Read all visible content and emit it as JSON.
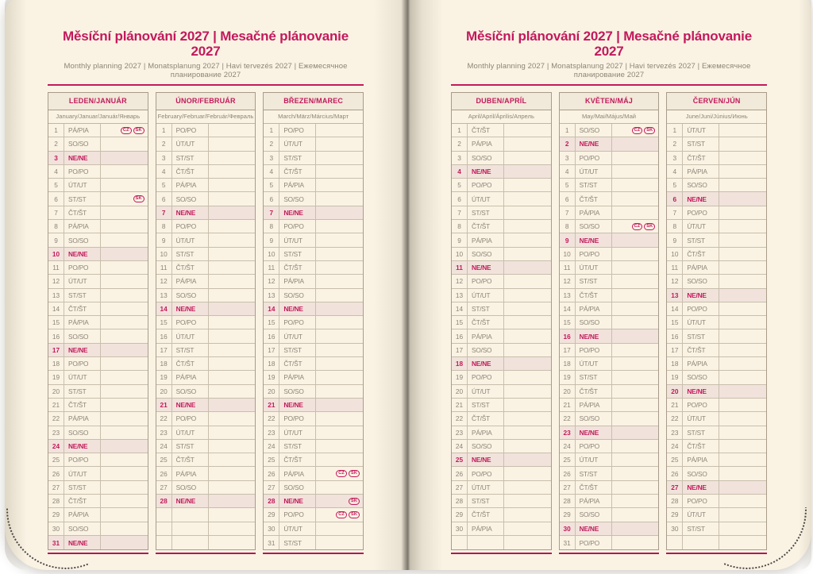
{
  "header": {
    "title": "Měsíční plánování 2027 | Mesačné plánovanie 2027",
    "subtitle": "Monthly planning 2027 | Monatsplanung 2027 | Havi tervezés 2027 | Ежемесячное планирование 2027"
  },
  "colors": {
    "accent": "#c3195c",
    "paper": "#faf3e4",
    "sunday_row": "#f1e3db",
    "table_border": "#a89c8a"
  },
  "months": [
    {
      "name": "LEDEN/JANUÁR",
      "languages": "January/Januar/Január/Январь",
      "empty_rows": 0,
      "days": [
        {
          "n": 1,
          "d": "PÁ/PIA",
          "b": [
            "CZ",
            "SK"
          ]
        },
        {
          "n": 2,
          "d": "SO/SO"
        },
        {
          "n": 3,
          "d": "NE/NE",
          "s": true
        },
        {
          "n": 4,
          "d": "PO/PO"
        },
        {
          "n": 5,
          "d": "ÚT/UT"
        },
        {
          "n": 6,
          "d": "ST/ST",
          "b": [
            "SK"
          ]
        },
        {
          "n": 7,
          "d": "ČT/ŠT"
        },
        {
          "n": 8,
          "d": "PÁ/PIA"
        },
        {
          "n": 9,
          "d": "SO/SO"
        },
        {
          "n": 10,
          "d": "NE/NE",
          "s": true
        },
        {
          "n": 11,
          "d": "PO/PO"
        },
        {
          "n": 12,
          "d": "ÚT/UT"
        },
        {
          "n": 13,
          "d": "ST/ST"
        },
        {
          "n": 14,
          "d": "ČT/ŠT"
        },
        {
          "n": 15,
          "d": "PÁ/PIA"
        },
        {
          "n": 16,
          "d": "SO/SO"
        },
        {
          "n": 17,
          "d": "NE/NE",
          "s": true
        },
        {
          "n": 18,
          "d": "PO/PO"
        },
        {
          "n": 19,
          "d": "ÚT/UT"
        },
        {
          "n": 20,
          "d": "ST/ST"
        },
        {
          "n": 21,
          "d": "ČT/ŠT"
        },
        {
          "n": 22,
          "d": "PÁ/PIA"
        },
        {
          "n": 23,
          "d": "SO/SO"
        },
        {
          "n": 24,
          "d": "NE/NE",
          "s": true
        },
        {
          "n": 25,
          "d": "PO/PO"
        },
        {
          "n": 26,
          "d": "ÚT/UT"
        },
        {
          "n": 27,
          "d": "ST/ST"
        },
        {
          "n": 28,
          "d": "ČT/ŠT"
        },
        {
          "n": 29,
          "d": "PÁ/PIA"
        },
        {
          "n": 30,
          "d": "SO/SO"
        },
        {
          "n": 31,
          "d": "NE/NE",
          "s": true
        }
      ]
    },
    {
      "name": "ÚNOR/FEBRUÁR",
      "languages": "February/Februar/Február/Февраль",
      "empty_rows": 3,
      "days": [
        {
          "n": 1,
          "d": "PO/PO"
        },
        {
          "n": 2,
          "d": "ÚT/UT"
        },
        {
          "n": 3,
          "d": "ST/ST"
        },
        {
          "n": 4,
          "d": "ČT/ŠT"
        },
        {
          "n": 5,
          "d": "PÁ/PIA"
        },
        {
          "n": 6,
          "d": "SO/SO"
        },
        {
          "n": 7,
          "d": "NE/NE",
          "s": true
        },
        {
          "n": 8,
          "d": "PO/PO"
        },
        {
          "n": 9,
          "d": "ÚT/UT"
        },
        {
          "n": 10,
          "d": "ST/ST"
        },
        {
          "n": 11,
          "d": "ČT/ŠT"
        },
        {
          "n": 12,
          "d": "PÁ/PIA"
        },
        {
          "n": 13,
          "d": "SO/SO"
        },
        {
          "n": 14,
          "d": "NE/NE",
          "s": true
        },
        {
          "n": 15,
          "d": "PO/PO"
        },
        {
          "n": 16,
          "d": "ÚT/UT"
        },
        {
          "n": 17,
          "d": "ST/ST"
        },
        {
          "n": 18,
          "d": "ČT/ŠT"
        },
        {
          "n": 19,
          "d": "PÁ/PIA"
        },
        {
          "n": 20,
          "d": "SO/SO"
        },
        {
          "n": 21,
          "d": "NE/NE",
          "s": true
        },
        {
          "n": 22,
          "d": "PO/PO"
        },
        {
          "n": 23,
          "d": "ÚT/UT"
        },
        {
          "n": 24,
          "d": "ST/ST"
        },
        {
          "n": 25,
          "d": "ČT/ŠT"
        },
        {
          "n": 26,
          "d": "PÁ/PIA"
        },
        {
          "n": 27,
          "d": "SO/SO"
        },
        {
          "n": 28,
          "d": "NE/NE",
          "s": true
        }
      ]
    },
    {
      "name": "BŘEZEN/MAREC",
      "languages": "March/März/Március/Март",
      "empty_rows": 0,
      "days": [
        {
          "n": 1,
          "d": "PO/PO"
        },
        {
          "n": 2,
          "d": "ÚT/UT"
        },
        {
          "n": 3,
          "d": "ST/ST"
        },
        {
          "n": 4,
          "d": "ČT/ŠT"
        },
        {
          "n": 5,
          "d": "PÁ/PIA"
        },
        {
          "n": 6,
          "d": "SO/SO"
        },
        {
          "n": 7,
          "d": "NE/NE",
          "s": true
        },
        {
          "n": 8,
          "d": "PO/PO"
        },
        {
          "n": 9,
          "d": "ÚT/UT"
        },
        {
          "n": 10,
          "d": "ST/ST"
        },
        {
          "n": 11,
          "d": "ČT/ŠT"
        },
        {
          "n": 12,
          "d": "PÁ/PIA"
        },
        {
          "n": 13,
          "d": "SO/SO"
        },
        {
          "n": 14,
          "d": "NE/NE",
          "s": true
        },
        {
          "n": 15,
          "d": "PO/PO"
        },
        {
          "n": 16,
          "d": "ÚT/UT"
        },
        {
          "n": 17,
          "d": "ST/ST"
        },
        {
          "n": 18,
          "d": "ČT/ŠT"
        },
        {
          "n": 19,
          "d": "PÁ/PIA"
        },
        {
          "n": 20,
          "d": "SO/SO"
        },
        {
          "n": 21,
          "d": "NE/NE",
          "s": true
        },
        {
          "n": 22,
          "d": "PO/PO"
        },
        {
          "n": 23,
          "d": "ÚT/UT"
        },
        {
          "n": 24,
          "d": "ST/ST"
        },
        {
          "n": 25,
          "d": "ČT/ŠT"
        },
        {
          "n": 26,
          "d": "PÁ/PIA",
          "b": [
            "CZ",
            "SK"
          ]
        },
        {
          "n": 27,
          "d": "SO/SO"
        },
        {
          "n": 28,
          "d": "NE/NE",
          "s": true,
          "b": [
            "SK"
          ]
        },
        {
          "n": 29,
          "d": "PO/PO",
          "b": [
            "CZ",
            "SK"
          ]
        },
        {
          "n": 30,
          "d": "ÚT/UT"
        },
        {
          "n": 31,
          "d": "ST/ST"
        }
      ]
    },
    {
      "name": "DUBEN/APRÍL",
      "languages": "April/April/Április/Апрель",
      "empty_rows": 1,
      "days": [
        {
          "n": 1,
          "d": "ČT/ŠT"
        },
        {
          "n": 2,
          "d": "PÁ/PIA"
        },
        {
          "n": 3,
          "d": "SO/SO"
        },
        {
          "n": 4,
          "d": "NE/NE",
          "s": true
        },
        {
          "n": 5,
          "d": "PO/PO"
        },
        {
          "n": 6,
          "d": "ÚT/UT"
        },
        {
          "n": 7,
          "d": "ST/ST"
        },
        {
          "n": 8,
          "d": "ČT/ŠT"
        },
        {
          "n": 9,
          "d": "PÁ/PIA"
        },
        {
          "n": 10,
          "d": "SO/SO"
        },
        {
          "n": 11,
          "d": "NE/NE",
          "s": true
        },
        {
          "n": 12,
          "d": "PO/PO"
        },
        {
          "n": 13,
          "d": "ÚT/UT"
        },
        {
          "n": 14,
          "d": "ST/ST"
        },
        {
          "n": 15,
          "d": "ČT/ŠT"
        },
        {
          "n": 16,
          "d": "PÁ/PIA"
        },
        {
          "n": 17,
          "d": "SO/SO"
        },
        {
          "n": 18,
          "d": "NE/NE",
          "s": true
        },
        {
          "n": 19,
          "d": "PO/PO"
        },
        {
          "n": 20,
          "d": "ÚT/UT"
        },
        {
          "n": 21,
          "d": "ST/ST"
        },
        {
          "n": 22,
          "d": "ČT/ŠT"
        },
        {
          "n": 23,
          "d": "PÁ/PIA"
        },
        {
          "n": 24,
          "d": "SO/SO"
        },
        {
          "n": 25,
          "d": "NE/NE",
          "s": true
        },
        {
          "n": 26,
          "d": "PO/PO"
        },
        {
          "n": 27,
          "d": "ÚT/UT"
        },
        {
          "n": 28,
          "d": "ST/ST"
        },
        {
          "n": 29,
          "d": "ČT/ŠT"
        },
        {
          "n": 30,
          "d": "PÁ/PIA"
        }
      ]
    },
    {
      "name": "KVĚTEN/MÁJ",
      "languages": "May/Mai/Május/Май",
      "empty_rows": 0,
      "days": [
        {
          "n": 1,
          "d": "SO/SO",
          "b": [
            "CZ",
            "SK"
          ]
        },
        {
          "n": 2,
          "d": "NE/NE",
          "s": true
        },
        {
          "n": 3,
          "d": "PO/PO"
        },
        {
          "n": 4,
          "d": "ÚT/UT"
        },
        {
          "n": 5,
          "d": "ST/ST"
        },
        {
          "n": 6,
          "d": "ČT/ŠT"
        },
        {
          "n": 7,
          "d": "PÁ/PIA"
        },
        {
          "n": 8,
          "d": "SO/SO",
          "b": [
            "CZ",
            "SK"
          ]
        },
        {
          "n": 9,
          "d": "NE/NE",
          "s": true
        },
        {
          "n": 10,
          "d": "PO/PO"
        },
        {
          "n": 11,
          "d": "ÚT/UT"
        },
        {
          "n": 12,
          "d": "ST/ST"
        },
        {
          "n": 13,
          "d": "ČT/ŠT"
        },
        {
          "n": 14,
          "d": "PÁ/PIA"
        },
        {
          "n": 15,
          "d": "SO/SO"
        },
        {
          "n": 16,
          "d": "NE/NE",
          "s": true
        },
        {
          "n": 17,
          "d": "PO/PO"
        },
        {
          "n": 18,
          "d": "ÚT/UT"
        },
        {
          "n": 19,
          "d": "ST/ST"
        },
        {
          "n": 20,
          "d": "ČT/ŠT"
        },
        {
          "n": 21,
          "d": "PÁ/PIA"
        },
        {
          "n": 22,
          "d": "SO/SO"
        },
        {
          "n": 23,
          "d": "NE/NE",
          "s": true
        },
        {
          "n": 24,
          "d": "PO/PO"
        },
        {
          "n": 25,
          "d": "ÚT/UT"
        },
        {
          "n": 26,
          "d": "ST/ST"
        },
        {
          "n": 27,
          "d": "ČT/ŠT"
        },
        {
          "n": 28,
          "d": "PÁ/PIA"
        },
        {
          "n": 29,
          "d": "SO/SO"
        },
        {
          "n": 30,
          "d": "NE/NE",
          "s": true
        },
        {
          "n": 31,
          "d": "PO/PO"
        }
      ]
    },
    {
      "name": "ČERVEN/JÚN",
      "languages": "June/Juni/Június/Июнь",
      "empty_rows": 1,
      "days": [
        {
          "n": 1,
          "d": "ÚT/UT"
        },
        {
          "n": 2,
          "d": "ST/ST"
        },
        {
          "n": 3,
          "d": "ČT/ŠT"
        },
        {
          "n": 4,
          "d": "PÁ/PIA"
        },
        {
          "n": 5,
          "d": "SO/SO"
        },
        {
          "n": 6,
          "d": "NE/NE",
          "s": true
        },
        {
          "n": 7,
          "d": "PO/PO"
        },
        {
          "n": 8,
          "d": "ÚT/UT"
        },
        {
          "n": 9,
          "d": "ST/ST"
        },
        {
          "n": 10,
          "d": "ČT/ŠT"
        },
        {
          "n": 11,
          "d": "PÁ/PIA"
        },
        {
          "n": 12,
          "d": "SO/SO"
        },
        {
          "n": 13,
          "d": "NE/NE",
          "s": true
        },
        {
          "n": 14,
          "d": "PO/PO"
        },
        {
          "n": 15,
          "d": "ÚT/UT"
        },
        {
          "n": 16,
          "d": "ST/ST"
        },
        {
          "n": 17,
          "d": "ČT/ŠT"
        },
        {
          "n": 18,
          "d": "PÁ/PIA"
        },
        {
          "n": 19,
          "d": "SO/SO"
        },
        {
          "n": 20,
          "d": "NE/NE",
          "s": true
        },
        {
          "n": 21,
          "d": "PO/PO"
        },
        {
          "n": 22,
          "d": "ÚT/UT"
        },
        {
          "n": 23,
          "d": "ST/ST"
        },
        {
          "n": 24,
          "d": "ČT/ŠT"
        },
        {
          "n": 25,
          "d": "PÁ/PIA"
        },
        {
          "n": 26,
          "d": "SO/SO"
        },
        {
          "n": 27,
          "d": "NE/NE",
          "s": true
        },
        {
          "n": 28,
          "d": "PO/PO"
        },
        {
          "n": 29,
          "d": "ÚT/UT"
        },
        {
          "n": 30,
          "d": "ST/ST"
        }
      ]
    }
  ]
}
